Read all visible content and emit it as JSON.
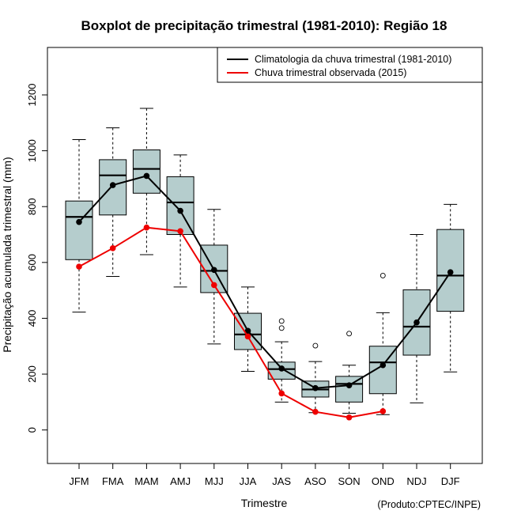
{
  "chart_data": {
    "type": "boxplot",
    "title": "Boxplot de precipitação trimestral (1981-2010): Região 18",
    "xlabel": "Trimestre",
    "ylabel": "Precipitação acumulada trimestral (mm)",
    "credit": "(Produto:CPTEC/INPE)",
    "ylim": [
      -120,
      1370
    ],
    "yticks": [
      0,
      200,
      400,
      600,
      800,
      1000,
      1200
    ],
    "categories": [
      "JFM",
      "FMA",
      "MAM",
      "AMJ",
      "MJJ",
      "JJA",
      "JAS",
      "ASO",
      "SON",
      "OND",
      "NDJ",
      "DJF"
    ],
    "boxes": [
      {
        "whisker_low": 422,
        "q1": 610,
        "median": 763,
        "q3": 820,
        "whisker_high": 1040,
        "outliers": []
      },
      {
        "whisker_low": 550,
        "q1": 770,
        "median": 912,
        "q3": 968,
        "whisker_high": 1082,
        "outliers": []
      },
      {
        "whisker_low": 628,
        "q1": 848,
        "median": 935,
        "q3": 1003,
        "whisker_high": 1152,
        "outliers": []
      },
      {
        "whisker_low": 512,
        "q1": 700,
        "median": 815,
        "q3": 907,
        "whisker_high": 985,
        "outliers": []
      },
      {
        "whisker_low": 308,
        "q1": 492,
        "median": 570,
        "q3": 662,
        "whisker_high": 790,
        "outliers": []
      },
      {
        "whisker_low": 210,
        "q1": 288,
        "median": 342,
        "q3": 418,
        "whisker_high": 512,
        "outliers": []
      },
      {
        "whisker_low": 100,
        "q1": 182,
        "median": 218,
        "q3": 243,
        "whisker_high": 316,
        "outliers": [
          365,
          390
        ]
      },
      {
        "whisker_low": 62,
        "q1": 118,
        "median": 145,
        "q3": 175,
        "whisker_high": 245,
        "outliers": [
          302
        ]
      },
      {
        "whisker_low": 60,
        "q1": 100,
        "median": 165,
        "q3": 192,
        "whisker_high": 232,
        "outliers": [
          345
        ]
      },
      {
        "whisker_low": 55,
        "q1": 130,
        "median": 242,
        "q3": 300,
        "whisker_high": 420,
        "outliers": [
          553
        ]
      },
      {
        "whisker_low": 97,
        "q1": 268,
        "median": 370,
        "q3": 502,
        "whisker_high": 700,
        "outliers": []
      },
      {
        "whisker_low": 208,
        "q1": 425,
        "median": 553,
        "q3": 718,
        "whisker_high": 808,
        "outliers": []
      }
    ],
    "series": [
      {
        "name": "Climatologia da chuva trimestral (1981-2010)",
        "color": "#000000",
        "values": [
          745,
          877,
          910,
          785,
          573,
          355,
          220,
          150,
          160,
          232,
          385,
          565
        ]
      },
      {
        "name": "Chuva trimestral observada (2015)",
        "color": "#ee0000",
        "values": [
          585,
          651,
          725,
          712,
          519,
          335,
          131,
          65,
          45,
          67,
          null,
          null
        ]
      }
    ],
    "box_fill": "#b5cdcd",
    "legend_position": "top-right"
  }
}
